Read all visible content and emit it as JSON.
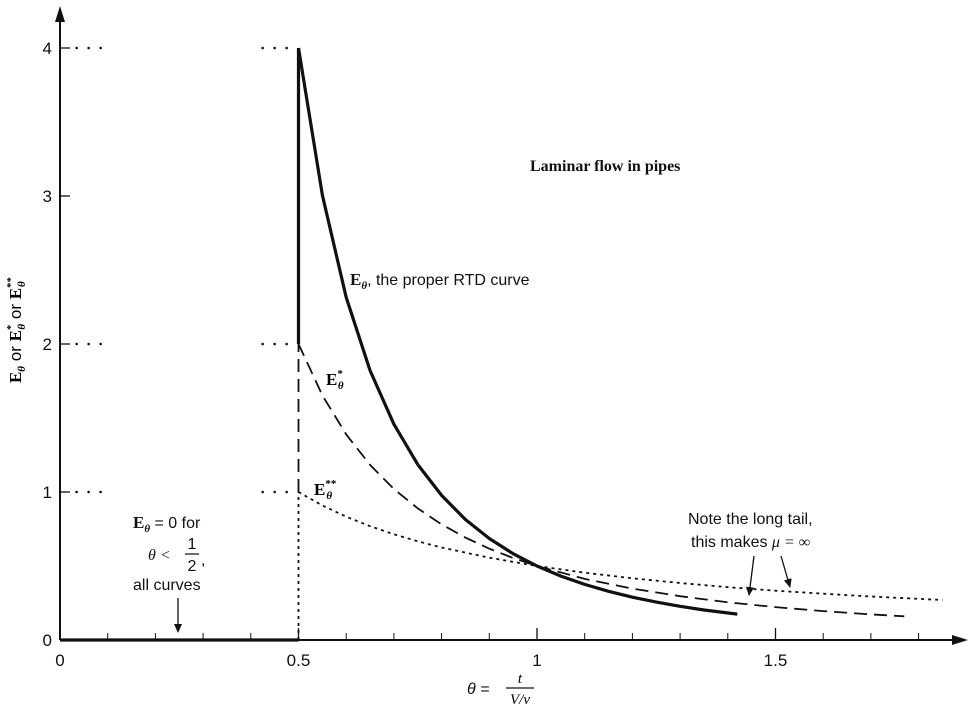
{
  "chart_data": {
    "type": "line",
    "title": "Laminar flow in pipes",
    "xlabel": {
      "prefix": "θ = ",
      "numerator": "t",
      "denominator": "V/v"
    },
    "ylabel": {
      "text": "Eθ or Eθ* or Eθ**"
    },
    "xlim": [
      0,
      1.85
    ],
    "ylim": [
      0,
      4.3
    ],
    "x_ticks": [
      {
        "value": 0,
        "label": "0"
      },
      {
        "value": 0.5,
        "label": "0.5"
      },
      {
        "value": 1,
        "label": "1"
      },
      {
        "value": 1.5,
        "label": "1.5"
      }
    ],
    "x_minor_ticks": [
      0.1,
      0.2,
      0.3,
      0.4,
      0.6,
      0.7,
      0.8,
      0.9,
      1.1,
      1.2,
      1.3,
      1.4,
      1.6,
      1.7,
      1.8
    ],
    "y_ticks": [
      {
        "value": 0,
        "label": "0"
      },
      {
        "value": 1,
        "label": "1"
      },
      {
        "value": 2,
        "label": "2"
      },
      {
        "value": 3,
        "label": "3"
      },
      {
        "value": 4,
        "label": "4"
      }
    ],
    "series": [
      {
        "name": "Eθ",
        "style": "solid",
        "x": [
          0.5,
          0.55,
          0.6,
          0.65,
          0.7,
          0.75,
          0.8,
          0.85,
          0.9,
          0.95,
          1.0,
          1.05,
          1.1,
          1.15,
          1.2,
          1.25,
          1.3,
          1.35,
          1.42
        ],
        "y": [
          4.0,
          3.005,
          2.315,
          1.82,
          1.458,
          1.185,
          0.977,
          0.814,
          0.686,
          0.583,
          0.5,
          0.432,
          0.376,
          0.329,
          0.289,
          0.256,
          0.228,
          0.203,
          0.175
        ]
      },
      {
        "name": "Eθ*",
        "style": "dashed",
        "x": [
          0.5,
          0.55,
          0.6,
          0.65,
          0.7,
          0.75,
          0.8,
          0.85,
          0.9,
          0.95,
          1.0,
          1.1,
          1.2,
          1.3,
          1.4,
          1.5,
          1.6,
          1.7,
          1.77
        ],
        "y": [
          2.0,
          1.653,
          1.389,
          1.183,
          1.02,
          0.889,
          0.781,
          0.692,
          0.617,
          0.554,
          0.5,
          0.413,
          0.347,
          0.296,
          0.255,
          0.222,
          0.195,
          0.173,
          0.16
        ]
      },
      {
        "name": "Eθ**",
        "style": "dotted",
        "x": [
          0.5,
          0.55,
          0.6,
          0.65,
          0.7,
          0.75,
          0.8,
          0.9,
          1.0,
          1.1,
          1.2,
          1.3,
          1.4,
          1.5,
          1.6,
          1.7,
          1.85
        ],
        "y": [
          1.0,
          0.909,
          0.833,
          0.769,
          0.714,
          0.667,
          0.625,
          0.556,
          0.5,
          0.455,
          0.417,
          0.385,
          0.357,
          0.333,
          0.313,
          0.294,
          0.27
        ]
      },
      {
        "name": "Eθ = 0",
        "style": "solid",
        "x": [
          0,
          0.5
        ],
        "y": [
          0,
          0
        ]
      }
    ],
    "dotted_level_markers": [
      1,
      2,
      4
    ],
    "annotations": {
      "curve_e_suffix": ", the proper RTD curve",
      "zero_note": {
        "line1_prefix": " = 0 for",
        "line2_prefix": "θ < ",
        "frac_num": "1",
        "frac_den": "2",
        "line2_suffix": ",",
        "line3": "all curves"
      },
      "tail_note": {
        "line1": "Note the long tail,",
        "line2_prefix": "this makes ",
        "line2_mu": "μ = ∞"
      }
    }
  }
}
